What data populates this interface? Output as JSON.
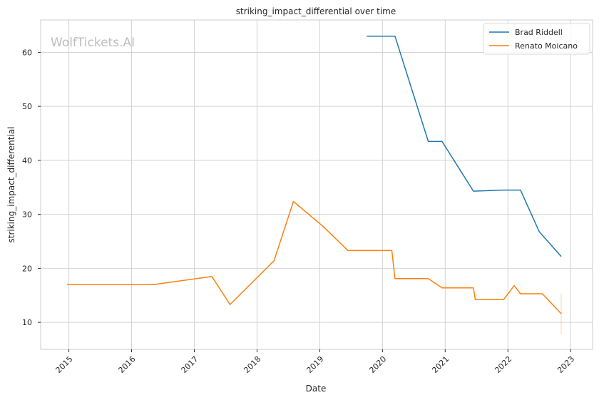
{
  "chart_data": {
    "type": "line",
    "title": "striking_impact_differential over time",
    "xlabel": "Date",
    "ylabel": "striking_impact_differential",
    "watermark": "WolfTickets.AI",
    "xlim": [
      2014.55,
      2023.35
    ],
    "ylim": [
      5,
      66
    ],
    "x_ticks": [
      {
        "value": 2015,
        "label": "2015"
      },
      {
        "value": 2016,
        "label": "2016"
      },
      {
        "value": 2017,
        "label": "2017"
      },
      {
        "value": 2018,
        "label": "2018"
      },
      {
        "value": 2019,
        "label": "2019"
      },
      {
        "value": 2020,
        "label": "2020"
      },
      {
        "value": 2021,
        "label": "2021"
      },
      {
        "value": 2022,
        "label": "2022"
      },
      {
        "value": 2023,
        "label": "2023"
      }
    ],
    "y_ticks": [
      {
        "value": 10,
        "label": "10"
      },
      {
        "value": 20,
        "label": "20"
      },
      {
        "value": 30,
        "label": "30"
      },
      {
        "value": 40,
        "label": "40"
      },
      {
        "value": 50,
        "label": "50"
      },
      {
        "value": 60,
        "label": "60"
      }
    ],
    "grid": true,
    "legend_position": "top-right",
    "series": [
      {
        "name": "Brad Riddell",
        "color": "#1f77b4",
        "points": [
          [
            2019.75,
            63.0
          ],
          [
            2020.2,
            63.0
          ],
          [
            2020.73,
            43.5
          ],
          [
            2020.95,
            43.5
          ],
          [
            2021.45,
            34.3
          ],
          [
            2021.9,
            34.5
          ],
          [
            2022.2,
            34.5
          ],
          [
            2022.5,
            26.8
          ],
          [
            2022.85,
            22.2
          ]
        ]
      },
      {
        "name": "Renato Moicano",
        "color": "#ff7f0e",
        "points": [
          [
            2014.97,
            17.0
          ],
          [
            2016.35,
            17.0
          ],
          [
            2017.28,
            18.5
          ],
          [
            2017.57,
            13.3
          ],
          [
            2018.27,
            21.4
          ],
          [
            2018.58,
            32.4
          ],
          [
            2019.05,
            27.8
          ],
          [
            2019.45,
            23.3
          ],
          [
            2020.15,
            23.3
          ],
          [
            2020.2,
            18.1
          ],
          [
            2020.73,
            18.1
          ],
          [
            2020.95,
            16.4
          ],
          [
            2021.45,
            16.4
          ],
          [
            2021.48,
            14.2
          ],
          [
            2021.93,
            14.2
          ],
          [
            2022.1,
            16.8
          ],
          [
            2022.2,
            15.3
          ],
          [
            2022.55,
            15.3
          ],
          [
            2022.85,
            11.6
          ]
        ],
        "error_band": {
          "x": 2022.85,
          "low": 7.8,
          "high": 15.4
        }
      }
    ]
  }
}
